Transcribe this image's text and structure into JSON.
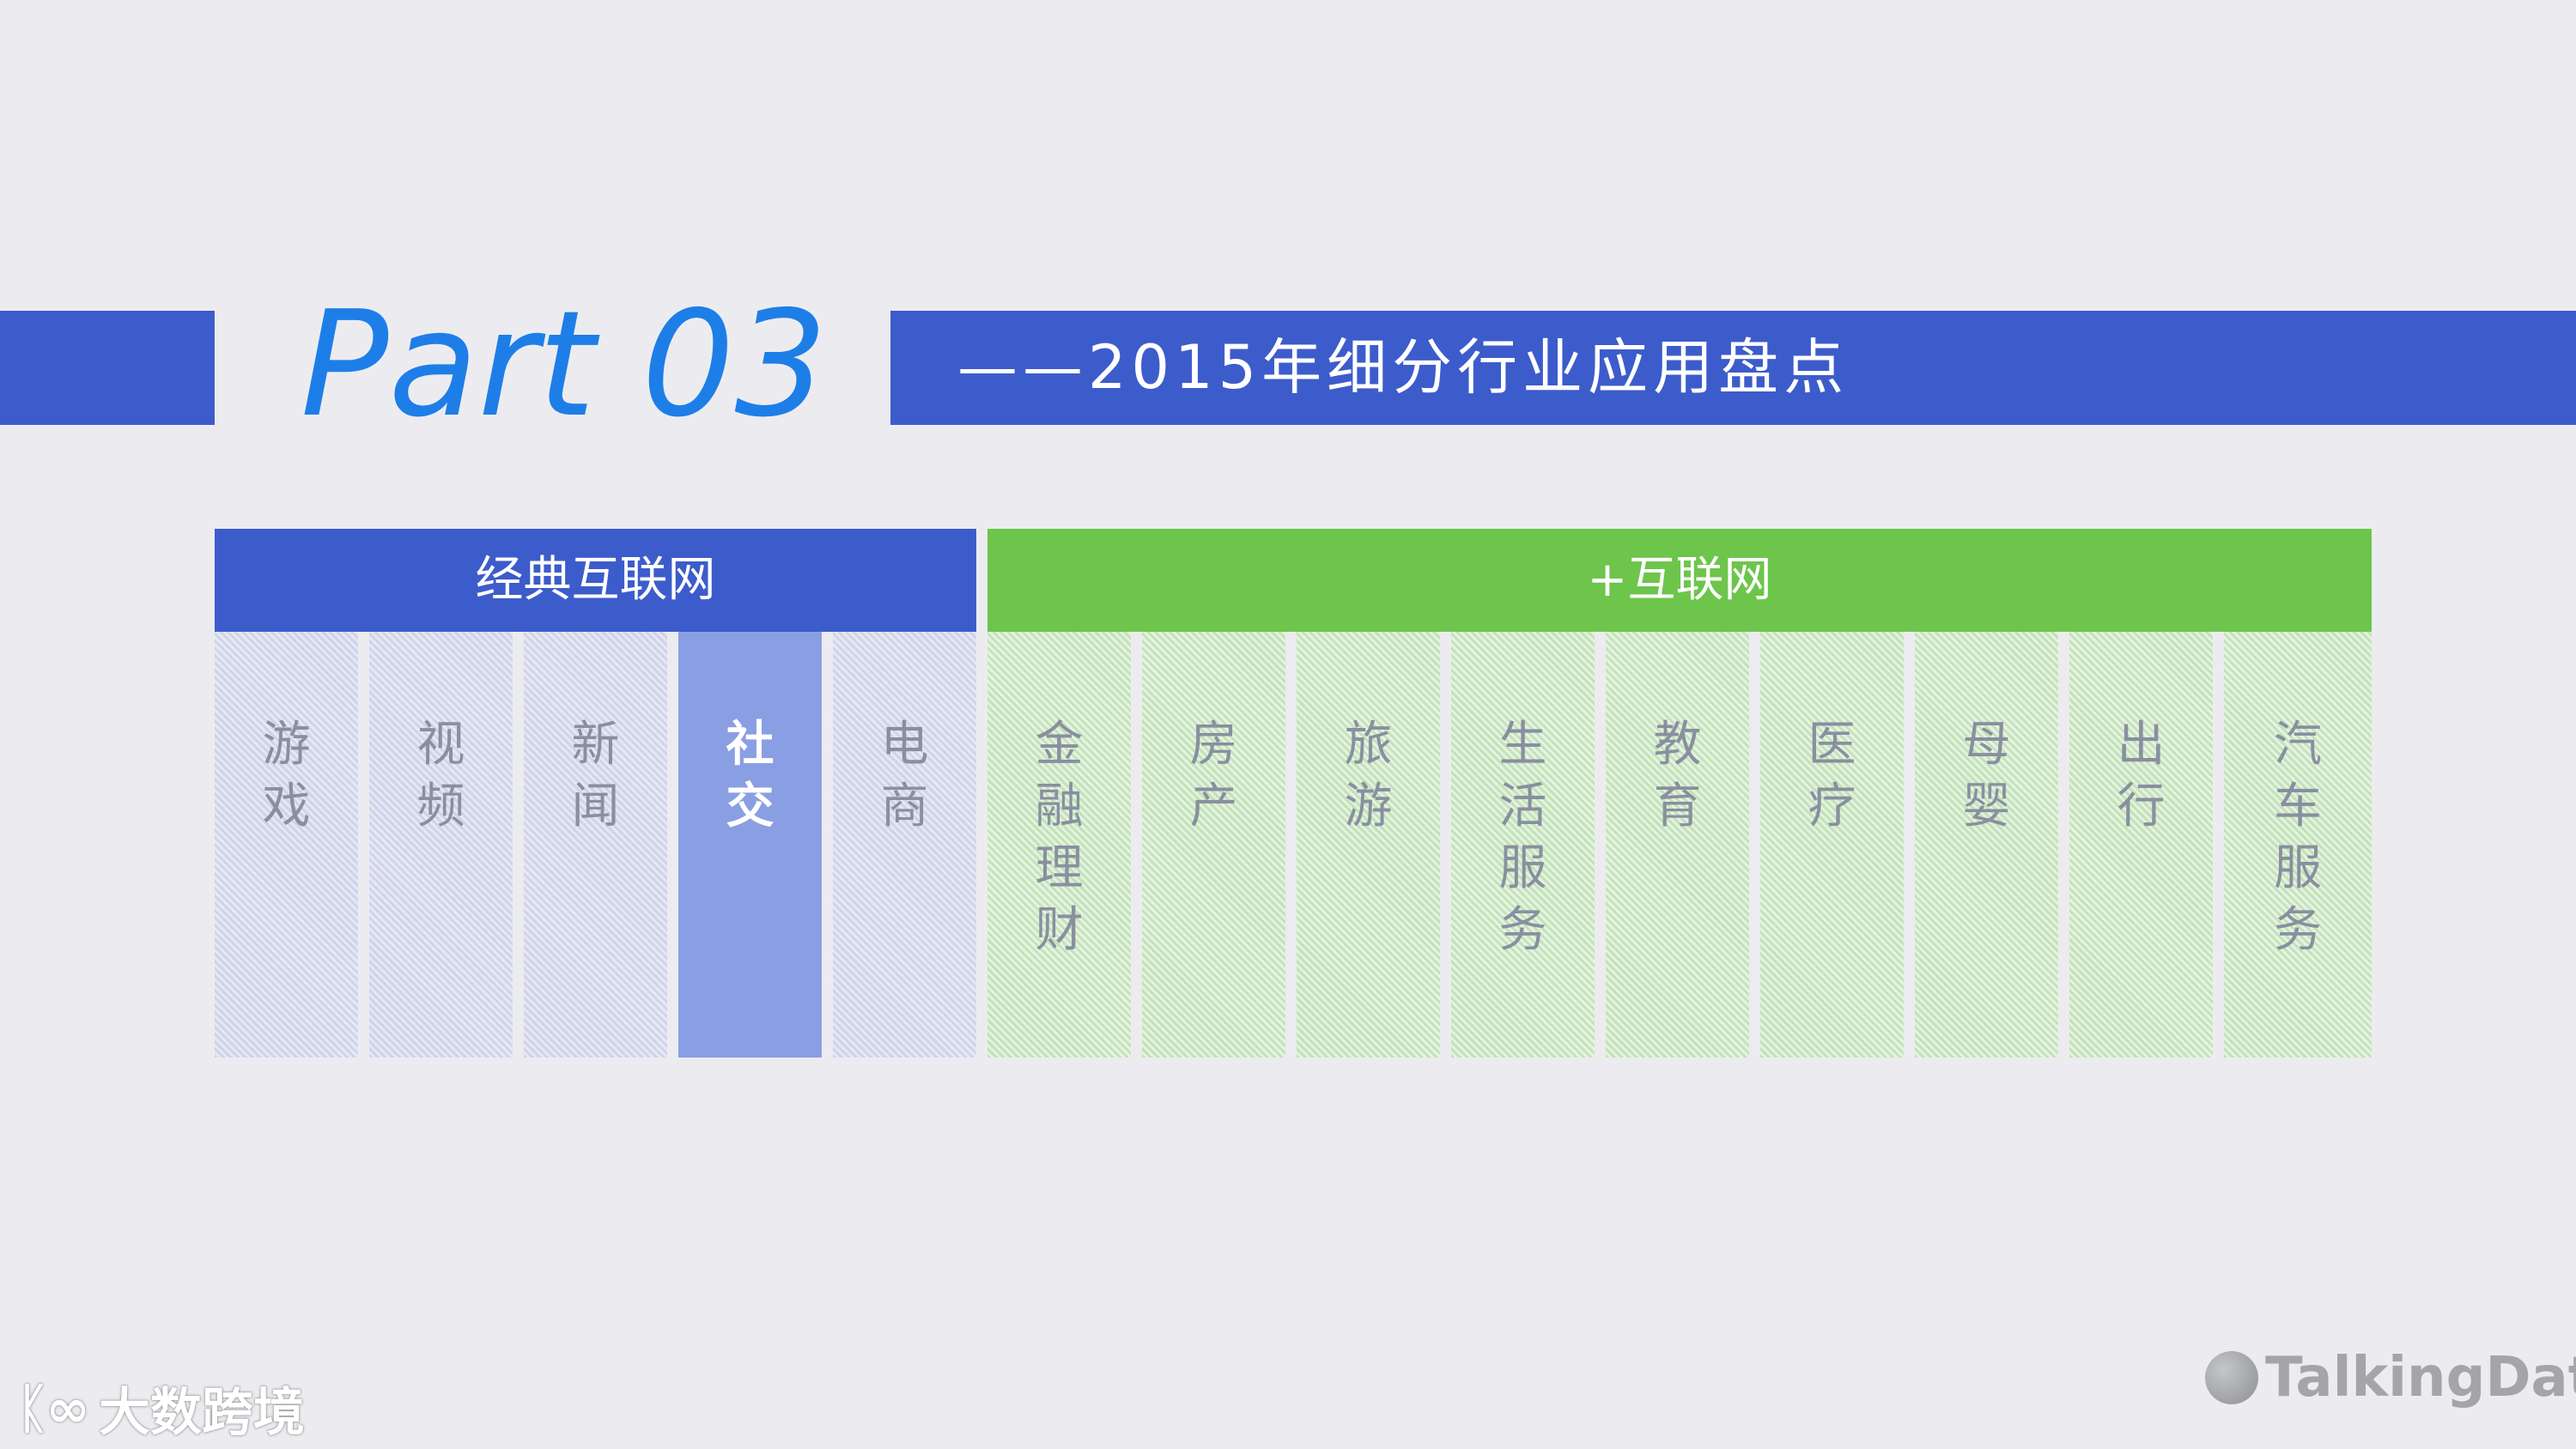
{
  "header": {
    "part_title": "Part 03",
    "subtitle": "——2015年细分行业应用盘点"
  },
  "groups": {
    "classic": {
      "label": "经典互联网",
      "color": "#3d5ccb"
    },
    "plus": {
      "label": "+互联网",
      "color": "#6dc54b"
    }
  },
  "columns": [
    {
      "chars": [
        "游",
        "戏"
      ]
    },
    {
      "chars": [
        "视",
        "频"
      ]
    },
    {
      "chars": [
        "新",
        "闻"
      ]
    },
    {
      "chars": [
        "社",
        "交"
      ],
      "highlighted": true
    },
    {
      "chars": [
        "电",
        "商"
      ]
    },
    {
      "chars": [
        "金",
        "融",
        "理",
        "财"
      ]
    },
    {
      "chars": [
        "房",
        "产"
      ]
    },
    {
      "chars": [
        "旅",
        "游"
      ]
    },
    {
      "chars": [
        "生",
        "活",
        "服",
        "务"
      ]
    },
    {
      "chars": [
        "教",
        "育"
      ]
    },
    {
      "chars": [
        "医",
        "疗"
      ]
    },
    {
      "chars": [
        "母",
        "婴"
      ]
    },
    {
      "chars": [
        "出",
        "行"
      ]
    },
    {
      "chars": [
        "汽",
        "车",
        "服",
        "务"
      ]
    }
  ],
  "watermarks": {
    "left": {
      "icon": "kee-logo-icon",
      "icon_text": "ᛕ∞",
      "text": "大数跨境"
    },
    "right": {
      "icon": "talkingdata-logo-icon",
      "text": "TalkingData"
    }
  },
  "colors": {
    "background": "#ececf0",
    "accent_blue": "#3d5ccb",
    "title_blue": "#1e7ee8",
    "accent_green": "#6dc54b",
    "highlight_column": "#8a9ee3"
  }
}
